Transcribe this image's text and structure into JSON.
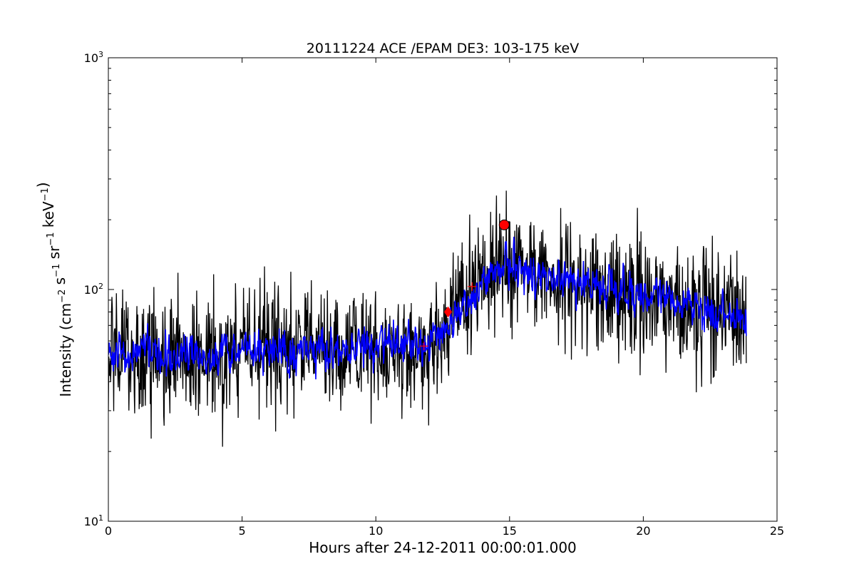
{
  "chart_data": {
    "type": "line",
    "title": "20111224 ACE /EPAM DE3: 103-175 keV",
    "xlabel": "Hours after 24-12-2011 00:00:01.000",
    "ylabel_main": "Intensity (cm",
    "ylabel_parts": [
      {
        "text": "Intensity (cm",
        "sup": false
      },
      {
        "text": "−2",
        "sup": true
      },
      {
        "text": " s",
        "sup": false
      },
      {
        "text": "−1",
        "sup": true
      },
      {
        "text": " sr",
        "sup": false
      },
      {
        "text": "−1",
        "sup": true
      },
      {
        "text": " keV",
        "sup": false
      },
      {
        "text": "−1",
        "sup": true
      },
      {
        "text": ")",
        "sup": false
      }
    ],
    "xlim": [
      0,
      25
    ],
    "ylim": [
      10,
      1000
    ],
    "yscale": "log",
    "grid": false,
    "xticks": [
      0,
      5,
      10,
      15,
      20,
      25
    ],
    "xtick_labels": [
      "0",
      "5",
      "10",
      "15",
      "20",
      "25"
    ],
    "yticks": [
      {
        "value": 10,
        "base": "10",
        "exp": "1"
      },
      {
        "value": 100,
        "base": "10",
        "exp": "2"
      },
      {
        "value": 1000,
        "base": "10",
        "exp": "3"
      }
    ],
    "series": [
      {
        "style": "raw",
        "color": "#000000",
        "x": [
          0.0,
          0.5,
          1.0,
          1.5,
          2.0,
          2.5,
          3.0,
          3.1,
          3.5,
          4.0,
          4.5,
          5.0,
          5.5,
          6.0,
          6.5,
          7.0,
          7.5,
          8.0,
          8.5,
          9.0,
          9.5,
          10.0,
          10.5,
          11.0,
          11.5,
          12.0,
          12.5,
          13.0,
          13.5,
          14.0,
          14.5,
          14.8,
          15.0,
          15.5,
          16.0,
          16.5,
          17.0,
          17.5,
          18.0,
          18.5,
          19.0,
          19.5,
          20.0,
          20.5,
          21.0,
          21.5,
          22.0,
          22.5,
          23.0,
          23.5,
          23.85
        ],
        "y": [
          52,
          55,
          53,
          54,
          52,
          55,
          50,
          45,
          52,
          53,
          54,
          55,
          56,
          55,
          54,
          56,
          55,
          54,
          53,
          55,
          56,
          57,
          56,
          58,
          57,
          60,
          68,
          80,
          93,
          108,
          125,
          130,
          128,
          120,
          115,
          112,
          110,
          105,
          103,
          102,
          100,
          98,
          96,
          95,
          92,
          88,
          85,
          82,
          78,
          75,
          73
        ]
      },
      {
        "style": "smoothed",
        "color": "#0000ff",
        "x": [
          0.0,
          0.5,
          1.0,
          1.5,
          2.0,
          2.5,
          3.0,
          3.5,
          4.0,
          4.5,
          5.0,
          5.5,
          6.0,
          6.5,
          7.0,
          7.5,
          8.0,
          8.5,
          9.0,
          9.5,
          10.0,
          10.5,
          11.0,
          11.5,
          12.0,
          12.5,
          13.0,
          13.5,
          14.0,
          14.5,
          14.8,
          15.0,
          15.5,
          16.0,
          16.5,
          17.0,
          17.5,
          18.0,
          18.5,
          19.0,
          19.5,
          20.0,
          20.5,
          21.0,
          21.5,
          22.0,
          22.5,
          23.0,
          23.5,
          23.85
        ],
        "y": [
          52,
          54,
          53,
          54,
          52,
          54,
          52,
          53,
          53,
          54,
          55,
          55,
          55,
          55,
          56,
          55,
          54,
          54,
          55,
          56,
          57,
          56,
          57,
          57,
          60,
          66,
          78,
          90,
          105,
          122,
          128,
          126,
          119,
          114,
          111,
          109,
          104,
          102,
          101,
          99,
          97,
          95,
          94,
          91,
          88,
          84,
          81,
          77,
          74,
          72
        ]
      }
    ],
    "noise_amplitude_ln": 0.3,
    "markers": [
      {
        "type": "plus",
        "x": 11.8,
        "y": 57,
        "color": "#ff0000"
      },
      {
        "type": "diamond",
        "x": 12.7,
        "y": 80,
        "color": "#ff0000"
      },
      {
        "type": "plus",
        "x": 13.6,
        "y": 103,
        "color": "#ff0000"
      },
      {
        "type": "circle",
        "x": 14.8,
        "y": 190,
        "color": "#ff0000"
      }
    ]
  }
}
